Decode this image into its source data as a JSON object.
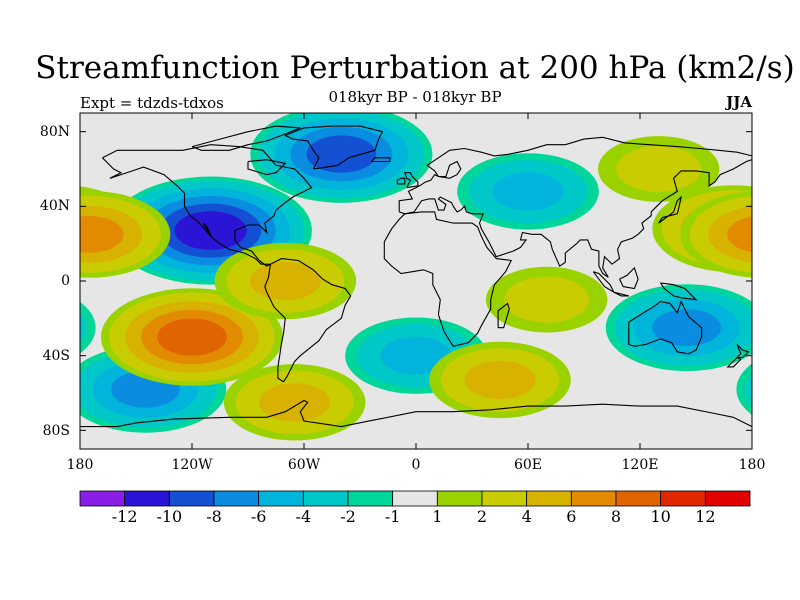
{
  "title": "Streamfunction Perturbation at 200 hPa (km2/s)",
  "subtitle": "018kyr BP - 018kyr BP",
  "experiment": "Expt = tdzds-tdxos",
  "season": "JJA",
  "y_ticks": [
    "80N",
    "40N",
    "0",
    "40S",
    "80S"
  ],
  "x_ticks": [
    "180",
    "120W",
    "60W",
    "0",
    "60E",
    "120E",
    "180"
  ],
  "colorbar": {
    "labels": [
      "-12",
      "-10",
      "-8",
      "-6",
      "-4",
      "-2",
      "-1",
      "1",
      "2",
      "4",
      "6",
      "8",
      "10",
      "12"
    ],
    "colors": [
      "#8a1ee6",
      "#2a14d6",
      "#1450d2",
      "#0a8ce0",
      "#00b4dc",
      "#00c8c8",
      "#00d69a",
      "#e6e6e6",
      "#9ad200",
      "#c8cc00",
      "#d8b200",
      "#e28a00",
      "#e06400",
      "#e02800",
      "#e00000"
    ]
  },
  "chart_data": {
    "type": "filled-contour-map",
    "title": "Streamfunction Perturbation at 200 hPa (km2/s)",
    "variable": "streamfunction perturbation",
    "units": "km2/s",
    "level": "200 hPa",
    "season": "JJA",
    "experiment": "tdzds-tdxos",
    "period": "018kyr BP - 018kyr BP",
    "lon_range": [
      -180,
      180
    ],
    "lat_range": [
      -90,
      90
    ],
    "contour_levels": [
      -12,
      -10,
      -8,
      -6,
      -4,
      -2,
      -1,
      1,
      2,
      4,
      6,
      8,
      10,
      12
    ],
    "features": [
      {
        "lon": -110,
        "lat": 27,
        "value": -10,
        "kind": "negative center"
      },
      {
        "lon": -40,
        "lat": 68,
        "value": -8,
        "kind": "negative center"
      },
      {
        "lon": -145,
        "lat": -58,
        "value": -6,
        "kind": "negative center"
      },
      {
        "lon": 145,
        "lat": -25,
        "value": -6,
        "kind": "negative center"
      },
      {
        "lon": 0,
        "lat": -40,
        "value": -4,
        "kind": "negative center"
      },
      {
        "lon": 60,
        "lat": 48,
        "value": -4,
        "kind": "negative center"
      },
      {
        "lon": -120,
        "lat": -30,
        "value": 8,
        "kind": "positive center"
      },
      {
        "lon": 170,
        "lat": 28,
        "value": 6,
        "kind": "positive center"
      },
      {
        "lon": -175,
        "lat": 25,
        "value": 6,
        "kind": "positive center"
      },
      {
        "lon": 45,
        "lat": -53,
        "value": 4,
        "kind": "positive center"
      },
      {
        "lon": -65,
        "lat": -65,
        "value": 4,
        "kind": "positive center"
      },
      {
        "lon": -70,
        "lat": 0,
        "value": 4,
        "kind": "positive center"
      },
      {
        "lon": 70,
        "lat": -10,
        "value": 2,
        "kind": "positive center"
      },
      {
        "lon": 130,
        "lat": 60,
        "value": 2,
        "kind": "positive center"
      }
    ]
  }
}
